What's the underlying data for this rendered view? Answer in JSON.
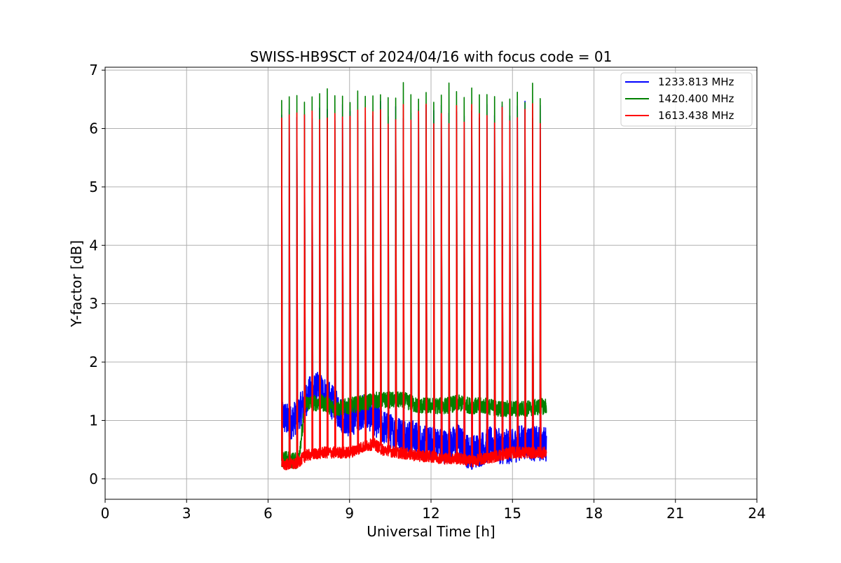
{
  "chart_data": {
    "type": "line",
    "title": "SWISS-HB9SCT of 2024/04/16 with focus code = 01",
    "xlabel": "Universal Time [h]",
    "ylabel": "Y-factor [dB]",
    "xlim": [
      0,
      24
    ],
    "ylim": [
      -0.35,
      7.05
    ],
    "xticks": [
      0,
      3,
      6,
      9,
      12,
      15,
      18,
      21,
      24
    ],
    "xtick_labels": [
      "0",
      "3",
      "6",
      "9",
      "12",
      "15",
      "18",
      "21",
      "24"
    ],
    "yticks": [
      0,
      1,
      2,
      3,
      4,
      5,
      6,
      7
    ],
    "ytick_labels": [
      "0",
      "1",
      "2",
      "3",
      "4",
      "5",
      "6",
      "7"
    ],
    "grid": true,
    "legend_position": "top-right",
    "time_range_h": [
      6.5,
      16.25
    ],
    "calibration_spike_times_h": [
      6.5,
      6.78,
      7.06,
      7.34,
      7.62,
      7.9,
      8.18,
      8.46,
      8.74,
      9.02,
      9.3,
      9.58,
      9.86,
      10.14,
      10.42,
      10.7,
      10.98,
      11.26,
      11.54,
      11.82,
      12.1,
      12.38,
      12.66,
      12.94,
      13.22,
      13.5,
      13.78,
      14.06,
      14.34,
      14.62,
      14.9,
      15.18,
      15.46,
      15.74,
      16.02
    ],
    "series": [
      {
        "name": "1233.813 MHz",
        "color": "#0000ff",
        "baseline_x": [
          6.5,
          6.8,
          7.1,
          7.5,
          7.9,
          8.3,
          8.7,
          9.0,
          9.4,
          9.8,
          10.2,
          10.6,
          11.0,
          11.4,
          11.8,
          12.2,
          12.6,
          13.0,
          13.4,
          13.8,
          14.2,
          14.6,
          15.0,
          15.4,
          15.8,
          16.25
        ],
        "baseline_y": [
          1.1,
          0.95,
          1.1,
          1.45,
          1.55,
          1.35,
          1.1,
          1.0,
          1.15,
          1.1,
          0.9,
          0.8,
          0.75,
          0.7,
          0.6,
          0.6,
          0.55,
          0.65,
          0.45,
          0.5,
          0.6,
          0.55,
          0.55,
          0.65,
          0.6,
          0.6
        ],
        "noise_amplitude": 0.3,
        "spike_peak": 6.3
      },
      {
        "name": "1420.400 MHz",
        "color": "#008000",
        "baseline_x": [
          6.5,
          7.1,
          7.4,
          8.0,
          8.5,
          9.0,
          9.5,
          10.0,
          10.5,
          11.0,
          11.5,
          12.0,
          12.5,
          13.0,
          13.5,
          14.0,
          14.5,
          15.0,
          15.5,
          16.25
        ],
        "baseline_y": [
          0.35,
          0.3,
          1.3,
          1.3,
          1.2,
          1.25,
          1.3,
          1.35,
          1.35,
          1.35,
          1.25,
          1.25,
          1.25,
          1.3,
          1.25,
          1.25,
          1.2,
          1.2,
          1.2,
          1.25
        ],
        "noise_amplitude": 0.14,
        "spike_peak": 6.62
      },
      {
        "name": "1613.438 MHz",
        "color": "#ff0000",
        "baseline_x": [
          6.5,
          7.0,
          7.4,
          8.0,
          8.5,
          9.0,
          9.5,
          9.9,
          10.2,
          10.8,
          11.5,
          12.0,
          12.5,
          13.0,
          13.5,
          14.0,
          14.5,
          15.0,
          15.5,
          16.25
        ],
        "baseline_y": [
          0.25,
          0.25,
          0.4,
          0.45,
          0.45,
          0.45,
          0.55,
          0.6,
          0.5,
          0.45,
          0.4,
          0.38,
          0.35,
          0.35,
          0.3,
          0.35,
          0.4,
          0.45,
          0.45,
          0.45
        ],
        "noise_amplitude": 0.1,
        "spike_peak": 6.25
      }
    ]
  }
}
